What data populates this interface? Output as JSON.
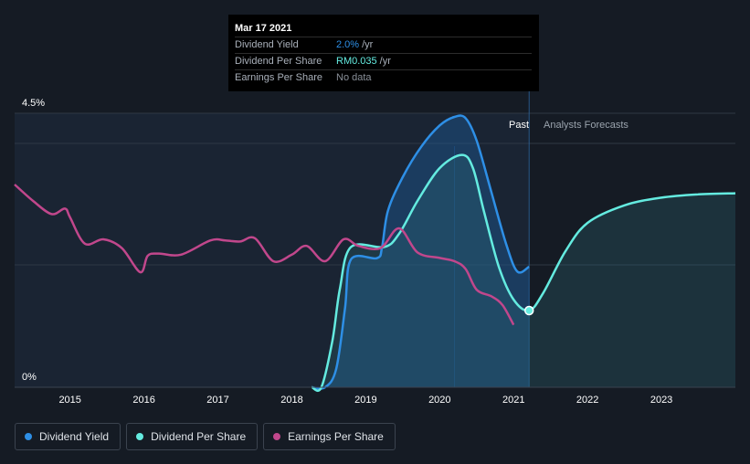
{
  "tooltip": {
    "date": "Mar 17 2021",
    "rows": [
      {
        "name": "Dividend Yield",
        "value": "2.0%",
        "unit": "/yr",
        "color": "#2e8fe6"
      },
      {
        "name": "Dividend Per Share",
        "value": "RM0.035",
        "unit": "/yr",
        "color": "#64ebe0"
      },
      {
        "name": "Earnings Per Share",
        "value": "No data",
        "unit": "",
        "color": "#8a9099"
      }
    ]
  },
  "labels": {
    "past": "Past",
    "forecast": "Analysts Forecasts"
  },
  "legend": [
    {
      "label": "Dividend Yield",
      "color": "#2e8fe6"
    },
    {
      "label": "Dividend Per Share",
      "color": "#64ebe0"
    },
    {
      "label": "Earnings Per Share",
      "color": "#c1478c"
    }
  ],
  "colors": {
    "background": "#151b24",
    "past_shade": "#1a2433",
    "dividend_yield": "#2e8fe6",
    "dividend_per_share": "#64ebe0",
    "earnings_per_share": "#c1478c"
  },
  "chart_data": {
    "type": "line",
    "x_range": [
      2014.25,
      2024.0
    ],
    "x_ticks": [
      "2015",
      "2016",
      "2017",
      "2018",
      "2019",
      "2020",
      "2021",
      "2022",
      "2023"
    ],
    "y_axis_labels": [
      "4.5%",
      "0%"
    ],
    "yield_range": [
      0,
      4.5
    ],
    "grid": true,
    "legend_position": "bottom-left",
    "past_until": 2021.21,
    "highlight": {
      "x": 2021.21,
      "series": "Dividend Per Share"
    },
    "series": [
      {
        "name": "Dividend Yield",
        "unit": "%",
        "points": [
          [
            2018.27,
            0.0
          ],
          [
            2018.45,
            0.0
          ],
          [
            2018.6,
            0.3
          ],
          [
            2018.72,
            1.3
          ],
          [
            2018.8,
            2.1
          ],
          [
            2019.15,
            2.12
          ],
          [
            2019.22,
            2.3
          ],
          [
            2019.3,
            2.9
          ],
          [
            2019.5,
            3.45
          ],
          [
            2019.75,
            3.95
          ],
          [
            2020.0,
            4.3
          ],
          [
            2020.2,
            4.44
          ],
          [
            2020.35,
            4.42
          ],
          [
            2020.5,
            4.05
          ],
          [
            2020.7,
            3.2
          ],
          [
            2020.9,
            2.35
          ],
          [
            2021.05,
            1.9
          ],
          [
            2021.21,
            1.98
          ]
        ]
      },
      {
        "name": "Dividend Per Share",
        "unit": "RM",
        "points": [
          [
            2018.27,
            0.0
          ],
          [
            2018.4,
            0.0
          ],
          [
            2018.55,
            0.0215
          ],
          [
            2018.65,
            0.045
          ],
          [
            2018.8,
            0.064
          ],
          [
            2019.25,
            0.064
          ],
          [
            2019.45,
            0.07
          ],
          [
            2019.7,
            0.085
          ],
          [
            2020.0,
            0.1
          ],
          [
            2020.3,
            0.106
          ],
          [
            2020.45,
            0.1
          ],
          [
            2020.6,
            0.08
          ],
          [
            2020.8,
            0.055
          ],
          [
            2021.0,
            0.04
          ],
          [
            2021.21,
            0.035
          ],
          [
            2021.4,
            0.043
          ],
          [
            2021.7,
            0.062
          ],
          [
            2022.0,
            0.075
          ],
          [
            2022.5,
            0.083
          ],
          [
            2023.0,
            0.0865
          ],
          [
            2023.5,
            0.088
          ],
          [
            2024.0,
            0.0885
          ]
        ]
      },
      {
        "name": "Earnings Per Share",
        "unit": "RM",
        "points": [
          [
            2014.25,
            0.0925
          ],
          [
            2014.5,
            0.085
          ],
          [
            2014.75,
            0.079
          ],
          [
            2014.93,
            0.0815
          ],
          [
            2015.0,
            0.0775
          ],
          [
            2015.2,
            0.0655
          ],
          [
            2015.45,
            0.0675
          ],
          [
            2015.7,
            0.0635
          ],
          [
            2015.95,
            0.0525
          ],
          [
            2016.05,
            0.06
          ],
          [
            2016.2,
            0.061
          ],
          [
            2016.5,
            0.0605
          ],
          [
            2016.9,
            0.067
          ],
          [
            2017.1,
            0.067
          ],
          [
            2017.3,
            0.0665
          ],
          [
            2017.5,
            0.068
          ],
          [
            2017.75,
            0.0575
          ],
          [
            2018.0,
            0.0605
          ],
          [
            2018.2,
            0.0645
          ],
          [
            2018.45,
            0.0575
          ],
          [
            2018.7,
            0.0675
          ],
          [
            2018.9,
            0.0645
          ],
          [
            2019.2,
            0.0635
          ],
          [
            2019.45,
            0.0725
          ],
          [
            2019.7,
            0.0615
          ],
          [
            2020.0,
            0.059
          ],
          [
            2020.2,
            0.0575
          ],
          [
            2020.35,
            0.054
          ],
          [
            2020.5,
            0.0445
          ],
          [
            2020.7,
            0.0415
          ],
          [
            2020.85,
            0.0375
          ],
          [
            2021.0,
            0.0285
          ]
        ]
      }
    ]
  }
}
